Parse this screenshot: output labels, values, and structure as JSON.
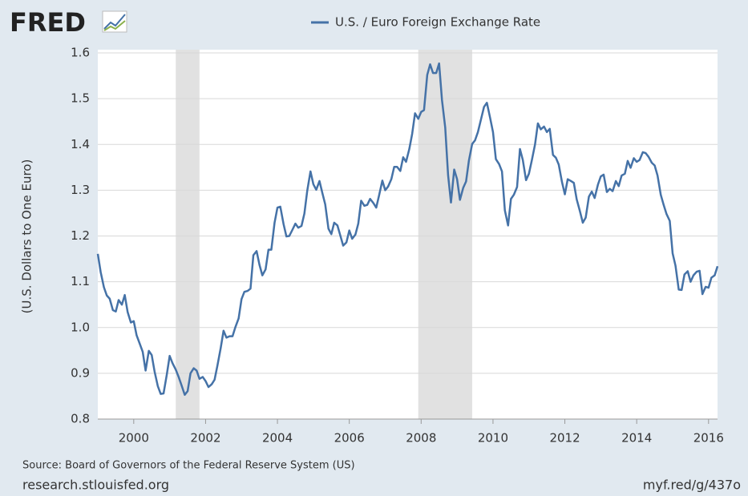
{
  "chart_data": {
    "type": "line",
    "logo": "FRED",
    "legend_position": "top",
    "ylabel": "(U.S. Dollars to One Euro)",
    "source": "Source: Board of Governors of the Federal Reserve System (US)",
    "site": "research.stlouisfed.org",
    "link": "myf.red/g/437o",
    "xlim": [
      1999,
      2016.25
    ],
    "xticks": [
      2000,
      2002,
      2004,
      2006,
      2008,
      2010,
      2012,
      2014,
      2016
    ],
    "ylim": [
      0.8,
      1.6
    ],
    "yticks": [
      0.8,
      0.9,
      {
        "value": 1,
        "label": "1.0"
      },
      1.1,
      1.2,
      1.3,
      1.4,
      1.5,
      1.6
    ],
    "grid": true,
    "recession_color": "#e1e1e1",
    "recessions": [
      {
        "start": 2001.17,
        "end": 2001.83
      },
      {
        "start": 2007.92,
        "end": 2009.42
      }
    ],
    "x": [
      1999,
      1999.08,
      1999.17,
      1999.25,
      1999.33,
      1999.42,
      1999.5,
      1999.58,
      1999.67,
      1999.75,
      1999.83,
      1999.92,
      2000,
      2000.08,
      2000.17,
      2000.25,
      2000.33,
      2000.42,
      2000.5,
      2000.58,
      2000.67,
      2000.75,
      2000.83,
      2000.92,
      2001,
      2001.08,
      2001.17,
      2001.25,
      2001.33,
      2001.42,
      2001.5,
      2001.58,
      2001.67,
      2001.75,
      2001.83,
      2001.92,
      2002,
      2002.08,
      2002.17,
      2002.25,
      2002.33,
      2002.42,
      2002.5,
      2002.58,
      2002.67,
      2002.75,
      2002.83,
      2002.92,
      2003,
      2003.08,
      2003.17,
      2003.25,
      2003.33,
      2003.42,
      2003.5,
      2003.58,
      2003.67,
      2003.75,
      2003.83,
      2003.92,
      2004,
      2004.08,
      2004.17,
      2004.25,
      2004.33,
      2004.42,
      2004.5,
      2004.58,
      2004.67,
      2004.75,
      2004.83,
      2004.92,
      2005,
      2005.08,
      2005.17,
      2005.25,
      2005.33,
      2005.42,
      2005.5,
      2005.58,
      2005.67,
      2005.75,
      2005.83,
      2005.92,
      2006,
      2006.08,
      2006.17,
      2006.25,
      2006.33,
      2006.42,
      2006.5,
      2006.58,
      2006.67,
      2006.75,
      2006.83,
      2006.92,
      2007,
      2007.08,
      2007.17,
      2007.25,
      2007.33,
      2007.42,
      2007.5,
      2007.58,
      2007.67,
      2007.75,
      2007.83,
      2007.92,
      2008,
      2008.08,
      2008.17,
      2008.25,
      2008.33,
      2008.42,
      2008.5,
      2008.58,
      2008.67,
      2008.75,
      2008.83,
      2008.92,
      2009,
      2009.08,
      2009.17,
      2009.25,
      2009.33,
      2009.42,
      2009.5,
      2009.58,
      2009.67,
      2009.75,
      2009.83,
      2009.92,
      2010,
      2010.08,
      2010.17,
      2010.25,
      2010.33,
      2010.42,
      2010.5,
      2010.58,
      2010.67,
      2010.75,
      2010.83,
      2010.92,
      2011,
      2011.08,
      2011.17,
      2011.25,
      2011.33,
      2011.42,
      2011.5,
      2011.58,
      2011.67,
      2011.75,
      2011.83,
      2011.92,
      2012,
      2012.08,
      2012.17,
      2012.25,
      2012.33,
      2012.42,
      2012.5,
      2012.58,
      2012.67,
      2012.75,
      2012.83,
      2012.92,
      2013,
      2013.08,
      2013.17,
      2013.25,
      2013.33,
      2013.42,
      2013.5,
      2013.58,
      2013.67,
      2013.75,
      2013.83,
      2013.92,
      2014,
      2014.08,
      2014.17,
      2014.25,
      2014.33,
      2014.42,
      2014.5,
      2014.58,
      2014.67,
      2014.75,
      2014.83,
      2014.92,
      2015,
      2015.08,
      2015.17,
      2015.25,
      2015.33,
      2015.42,
      2015.5,
      2015.58,
      2015.67,
      2015.75,
      2015.83,
      2015.92,
      2016,
      2016.08,
      2016.17,
      2016.25
    ],
    "series": [
      {
        "name": "U.S. / Euro Foreign Exchange Rate",
        "color": "#4572a7",
        "values": [
          1.161,
          1.121,
          1.088,
          1.07,
          1.063,
          1.038,
          1.035,
          1.06,
          1.05,
          1.071,
          1.034,
          1.011,
          1.014,
          0.983,
          0.964,
          0.947,
          0.906,
          0.949,
          0.94,
          0.904,
          0.872,
          0.855,
          0.856,
          0.897,
          0.938,
          0.922,
          0.908,
          0.892,
          0.874,
          0.853,
          0.861,
          0.9,
          0.911,
          0.906,
          0.888,
          0.892,
          0.883,
          0.87,
          0.876,
          0.886,
          0.917,
          0.955,
          0.993,
          0.978,
          0.981,
          0.981,
          1.001,
          1.02,
          1.062,
          1.078,
          1.08,
          1.085,
          1.158,
          1.167,
          1.137,
          1.114,
          1.127,
          1.17,
          1.17,
          1.229,
          1.262,
          1.264,
          1.226,
          1.199,
          1.2,
          1.214,
          1.227,
          1.218,
          1.222,
          1.249,
          1.299,
          1.341,
          1.313,
          1.301,
          1.32,
          1.294,
          1.269,
          1.216,
          1.204,
          1.229,
          1.223,
          1.201,
          1.179,
          1.186,
          1.212,
          1.194,
          1.203,
          1.227,
          1.277,
          1.266,
          1.268,
          1.281,
          1.272,
          1.262,
          1.289,
          1.321,
          1.3,
          1.308,
          1.324,
          1.351,
          1.351,
          1.342,
          1.372,
          1.362,
          1.39,
          1.423,
          1.468,
          1.456,
          1.471,
          1.475,
          1.552,
          1.575,
          1.556,
          1.556,
          1.577,
          1.497,
          1.437,
          1.333,
          1.273,
          1.345,
          1.324,
          1.279,
          1.305,
          1.319,
          1.365,
          1.401,
          1.409,
          1.427,
          1.456,
          1.482,
          1.491,
          1.458,
          1.427,
          1.368,
          1.357,
          1.341,
          1.256,
          1.223,
          1.281,
          1.29,
          1.307,
          1.39,
          1.366,
          1.322,
          1.336,
          1.365,
          1.4,
          1.446,
          1.433,
          1.439,
          1.427,
          1.434,
          1.377,
          1.371,
          1.356,
          1.318,
          1.291,
          1.324,
          1.32,
          1.316,
          1.28,
          1.254,
          1.229,
          1.24,
          1.286,
          1.297,
          1.283,
          1.312,
          1.33,
          1.334,
          1.296,
          1.303,
          1.298,
          1.32,
          1.309,
          1.332,
          1.336,
          1.364,
          1.349,
          1.37,
          1.362,
          1.366,
          1.383,
          1.381,
          1.373,
          1.36,
          1.354,
          1.332,
          1.29,
          1.268,
          1.248,
          1.233,
          1.162,
          1.135,
          1.083,
          1.082,
          1.116,
          1.123,
          1.1,
          1.114,
          1.122,
          1.124,
          1.073,
          1.089,
          1.087,
          1.109,
          1.114,
          1.134
        ]
      }
    ]
  }
}
